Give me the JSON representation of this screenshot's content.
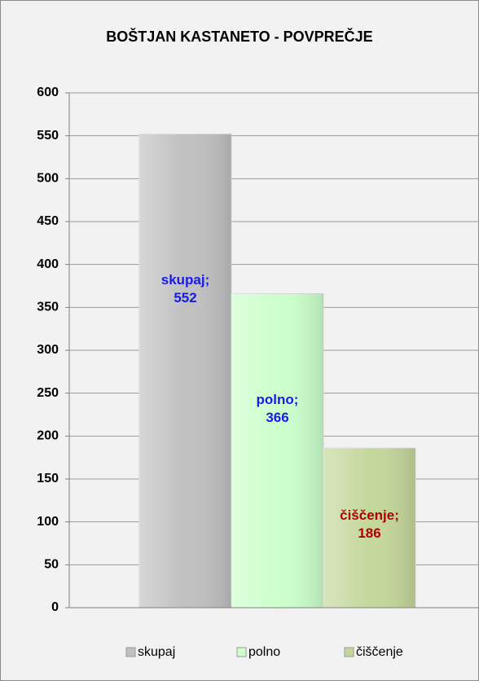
{
  "chart_data": {
    "type": "bar",
    "title": "BOŠTJAN KASTANETO - POVPREČJE",
    "categories": [
      null
    ],
    "series": [
      {
        "name": "skupaj",
        "color": "#c0c0c0",
        "label_color": "#1a1ae6",
        "values": [
          552
        ],
        "value_labels": [
          "skupaj; 552"
        ]
      },
      {
        "name": "polno",
        "color": "#ccffcc",
        "label_color": "#1a1ae6",
        "values": [
          366
        ],
        "value_labels": [
          "polno; 366"
        ]
      },
      {
        "name": "čiščenje",
        "color": "#c4d79b",
        "label_color": "#b00000",
        "values": [
          186
        ],
        "value_labels": [
          "čiščenje; 186"
        ]
      }
    ],
    "ylim": [
      0,
      600
    ],
    "yticks": [
      0,
      50,
      100,
      150,
      200,
      250,
      300,
      350,
      400,
      450,
      500,
      550,
      600
    ],
    "grid": true,
    "legend": "bottom"
  }
}
